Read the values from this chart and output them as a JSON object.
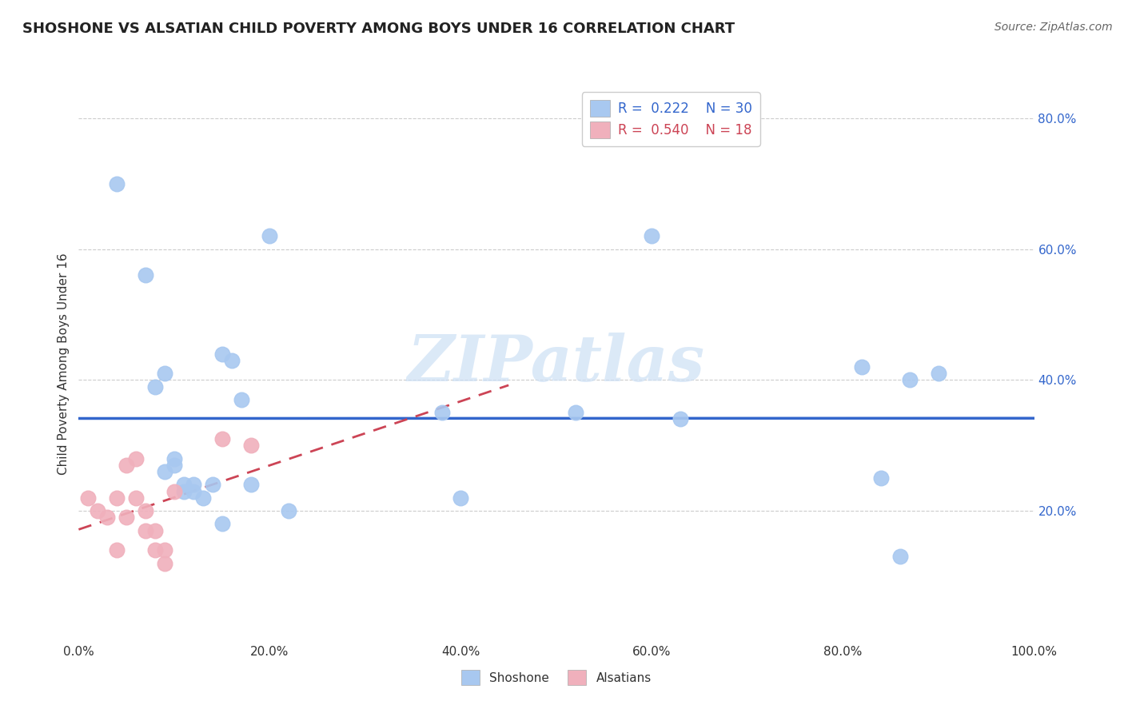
{
  "title": "SHOSHONE VS ALSATIAN CHILD POVERTY AMONG BOYS UNDER 16 CORRELATION CHART",
  "source": "Source: ZipAtlas.com",
  "ylabel": "Child Poverty Among Boys Under 16",
  "xlim": [
    0.0,
    1.0
  ],
  "ylim": [
    0.0,
    0.85
  ],
  "xticks": [
    0.0,
    0.2,
    0.4,
    0.6,
    0.8,
    1.0
  ],
  "xtick_labels": [
    "0.0%",
    "20.0%",
    "40.0%",
    "60.0%",
    "80.0%",
    "100.0%"
  ],
  "ytick_right_vals": [
    0.2,
    0.4,
    0.6,
    0.8
  ],
  "ytick_right_labels": [
    "20.0%",
    "40.0%",
    "60.0%",
    "80.0%"
  ],
  "shoshone_color": "#a8c8f0",
  "alsatian_color": "#f0b0bc",
  "shoshone_line_color": "#3366cc",
  "alsatian_line_color": "#cc4455",
  "R_shoshone": 0.222,
  "N_shoshone": 30,
  "R_alsatian": 0.54,
  "N_alsatian": 18,
  "shoshone_x": [
    0.04,
    0.07,
    0.08,
    0.09,
    0.09,
    0.1,
    0.1,
    0.11,
    0.11,
    0.12,
    0.12,
    0.13,
    0.14,
    0.15,
    0.15,
    0.16,
    0.17,
    0.18,
    0.2,
    0.22,
    0.38,
    0.4,
    0.52,
    0.6,
    0.63,
    0.82,
    0.84,
    0.86,
    0.87,
    0.9
  ],
  "shoshone_y": [
    0.7,
    0.56,
    0.39,
    0.41,
    0.26,
    0.27,
    0.28,
    0.23,
    0.24,
    0.23,
    0.24,
    0.22,
    0.24,
    0.18,
    0.44,
    0.43,
    0.37,
    0.24,
    0.62,
    0.2,
    0.35,
    0.22,
    0.35,
    0.62,
    0.34,
    0.42,
    0.25,
    0.13,
    0.4,
    0.41
  ],
  "alsatian_x": [
    0.01,
    0.02,
    0.03,
    0.04,
    0.04,
    0.05,
    0.05,
    0.06,
    0.06,
    0.07,
    0.07,
    0.08,
    0.08,
    0.09,
    0.09,
    0.1,
    0.15,
    0.18
  ],
  "alsatian_y": [
    0.22,
    0.2,
    0.19,
    0.14,
    0.22,
    0.19,
    0.27,
    0.28,
    0.22,
    0.17,
    0.2,
    0.17,
    0.14,
    0.12,
    0.14,
    0.23,
    0.31,
    0.3
  ],
  "background_color": "#ffffff",
  "grid_color": "#cccccc",
  "watermark_zip": "ZIP",
  "watermark_atlas": "atlas",
  "watermark_color_zip": "#c8ddf0",
  "watermark_color_atlas": "#c8ddf0"
}
